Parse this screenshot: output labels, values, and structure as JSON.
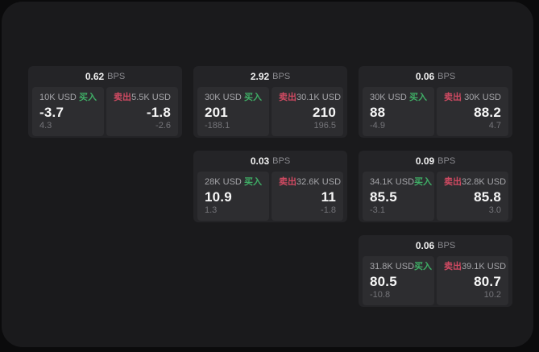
{
  "labels": {
    "bps_unit": "BPS",
    "buy": "买入",
    "sell": "卖出"
  },
  "colors": {
    "buy": "#3fae66",
    "sell": "#d04a62",
    "panel": "#1a1a1c",
    "card": "#242427",
    "tile": "#2d2d30"
  },
  "cards": [
    {
      "bps": "0.62",
      "buy": {
        "size": "10K USD",
        "value": "-3.7",
        "delta": "4.3"
      },
      "sell": {
        "size": "5.5K USD",
        "value": "-1.8",
        "delta": "-2.6"
      }
    },
    {
      "bps": "2.92",
      "buy": {
        "size": "30K USD",
        "value": "201",
        "delta": "-188.1"
      },
      "sell": {
        "size": "30.1K USD",
        "value": "210",
        "delta": "196.5"
      }
    },
    {
      "bps": "0.06",
      "buy": {
        "size": "30K USD",
        "value": "88",
        "delta": "-4.9"
      },
      "sell": {
        "size": "30K USD",
        "value": "88.2",
        "delta": "4.7"
      }
    },
    {
      "bps": "0.03",
      "buy": {
        "size": "28K USD",
        "value": "10.9",
        "delta": "1.3"
      },
      "sell": {
        "size": "32.6K USD",
        "value": "11",
        "delta": "-1.8"
      }
    },
    {
      "bps": "0.09",
      "buy": {
        "size": "34.1K USD",
        "value": "85.5",
        "delta": "-3.1"
      },
      "sell": {
        "size": "32.8K USD",
        "value": "85.8",
        "delta": "3.0"
      }
    },
    {
      "bps": "0.06",
      "buy": {
        "size": "31.8K USD",
        "value": "80.5",
        "delta": "-10.8"
      },
      "sell": {
        "size": "39.1K USD",
        "value": "80.7",
        "delta": "10.2"
      }
    }
  ]
}
